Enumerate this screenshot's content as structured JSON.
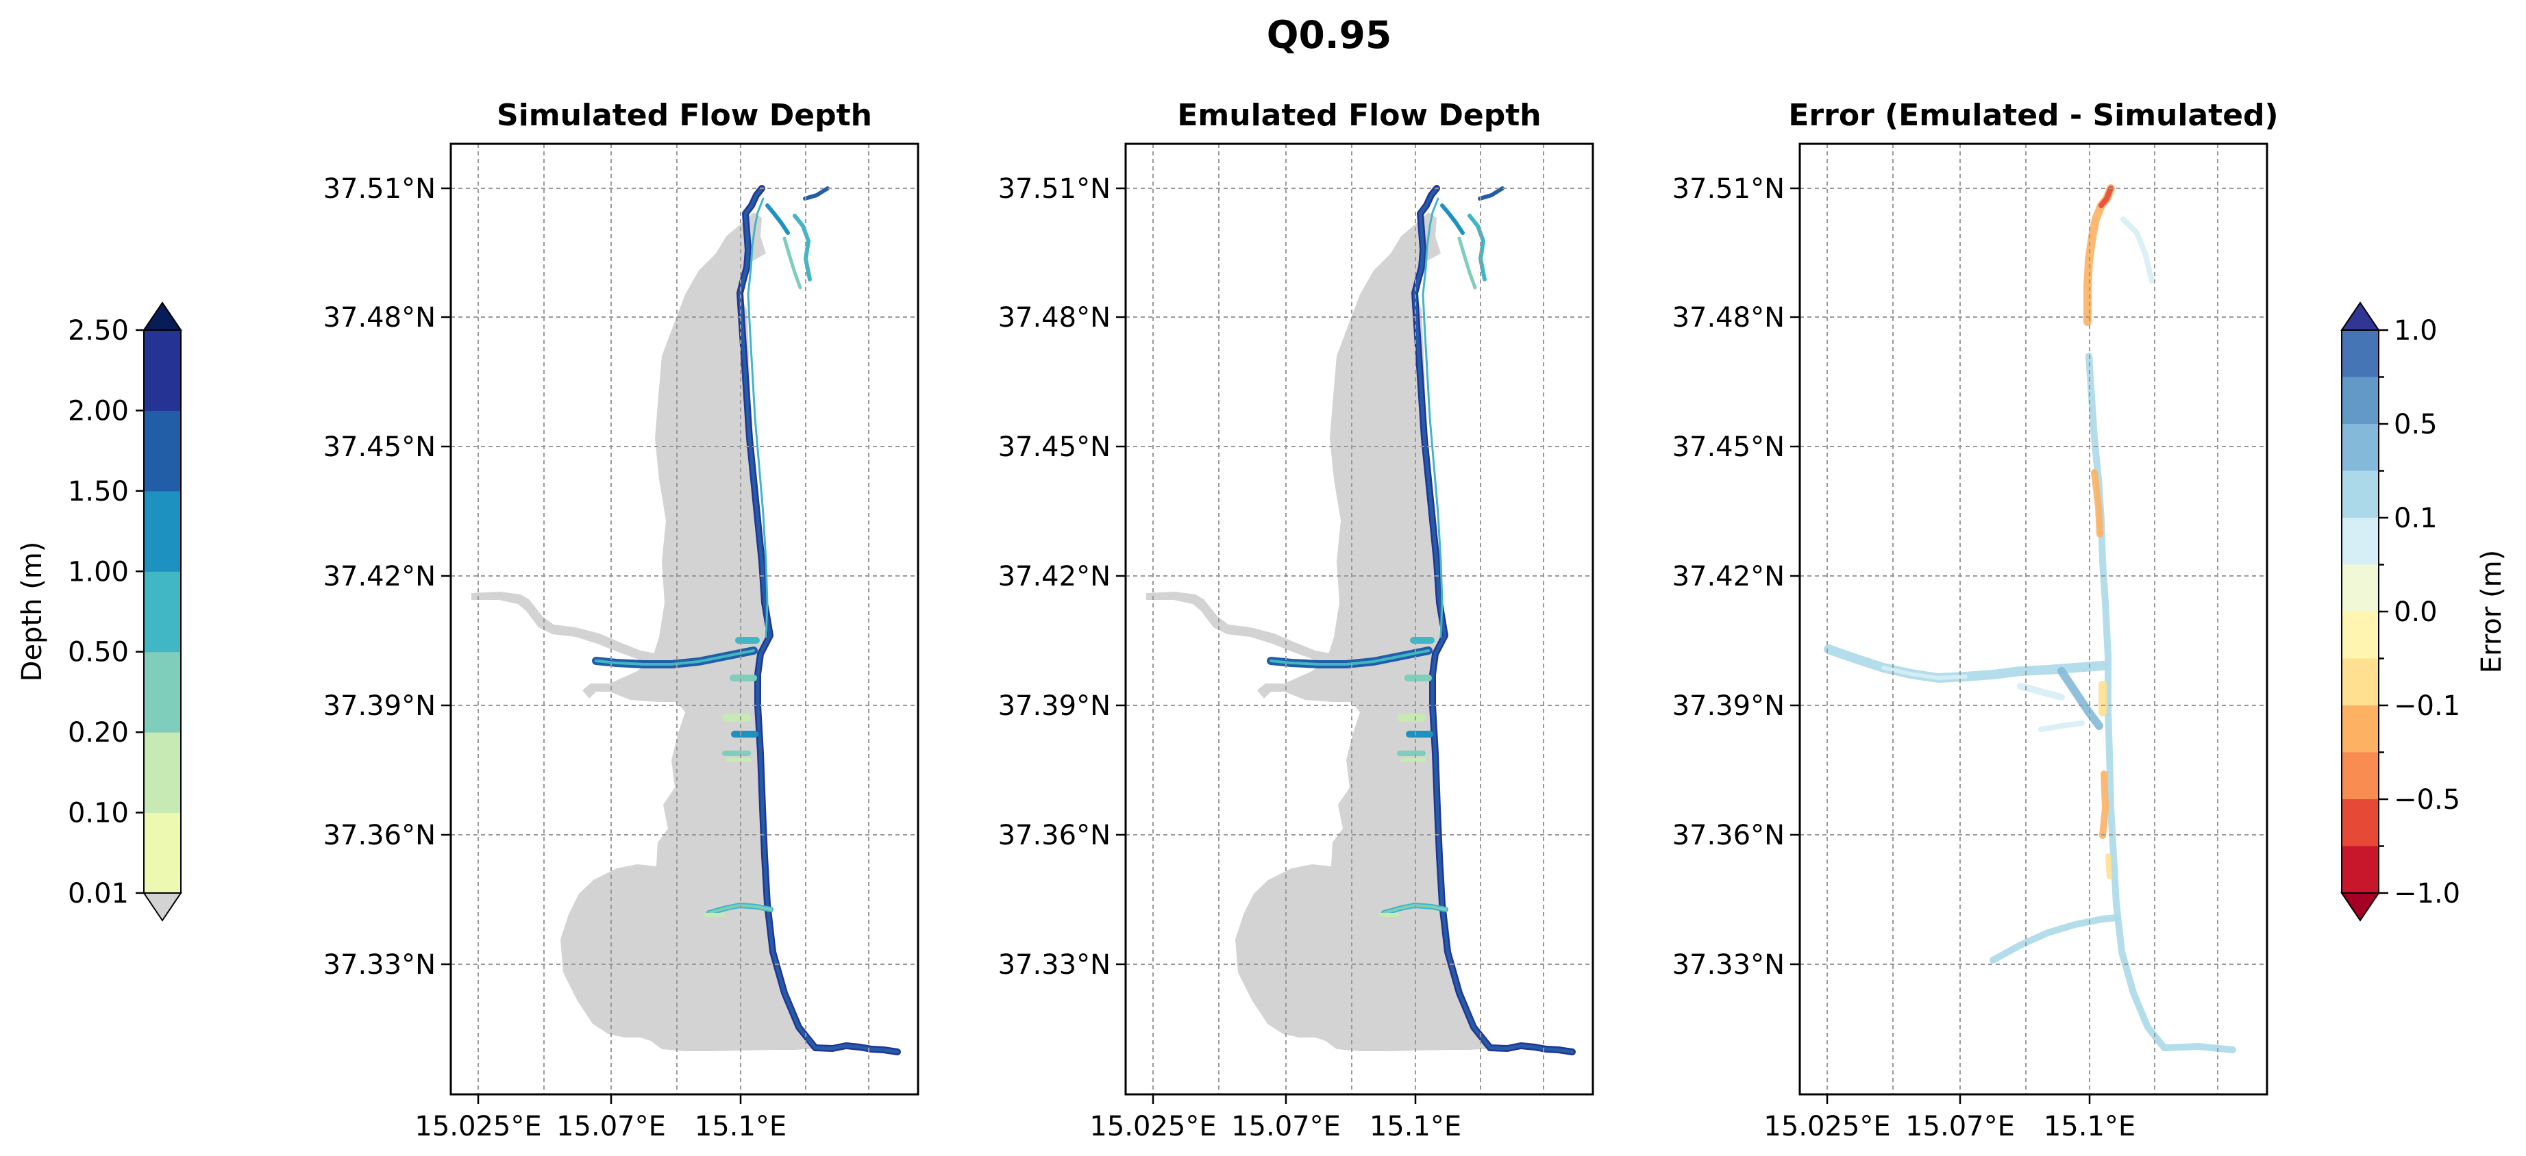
{
  "figure_title": "Q0.95",
  "colorbar_left": {
    "label": "Depth (m)",
    "levels": [
      "0.01",
      "0.10",
      "0.20",
      "0.50",
      "1.00",
      "1.50",
      "2.00",
      "2.50"
    ],
    "colors": [
      "#edf8b1",
      "#c7e9b4",
      "#7fcdbb",
      "#41b6c4",
      "#1d91c0",
      "#225ea8",
      "#253494"
    ],
    "over_color": "#081d58",
    "under_color": "#d3d3d3"
  },
  "colorbar_right": {
    "label": "Error (m)",
    "tick_labels": [
      "1.0",
      "0.5",
      "0.1",
      "0.0",
      "−0.1",
      "−0.5",
      "−1.0"
    ],
    "colors": [
      "#4575b4",
      "#6399c7",
      "#85b9d9",
      "#abd9e9",
      "#d6eef5",
      "#f1f8d6",
      "#fff5b0",
      "#fee090",
      "#fdb163",
      "#f88c51",
      "#e64a36",
      "#c8172b"
    ],
    "over_color": "#313695",
    "under_color": "#a50026"
  },
  "chart_data": [
    {
      "type": "map",
      "title": "Simulated Flow Depth",
      "xticks": [
        "15.025°E",
        "15.07°E",
        "15.1°E"
      ],
      "yticks": [
        "37.51°N",
        "37.48°N",
        "37.45°N",
        "37.42°N",
        "37.39°N",
        "37.36°N",
        "37.33°N"
      ],
      "grid": true,
      "variable": "flow depth (m)",
      "land_color": "#d3d3d3"
    },
    {
      "type": "map",
      "title": "Emulated Flow Depth",
      "xticks": [
        "15.025°E",
        "15.07°E",
        "15.1°E"
      ],
      "yticks": [
        "37.51°N",
        "37.48°N",
        "37.45°N",
        "37.42°N",
        "37.39°N",
        "37.36°N",
        "37.33°N"
      ],
      "grid": true,
      "variable": "flow depth (m)",
      "land_color": "#d3d3d3"
    },
    {
      "type": "map",
      "title": "Error (Emulated - Simulated)",
      "xticks": [
        "15.025°E",
        "15.07°E",
        "15.1°E"
      ],
      "yticks": [
        "37.51°N",
        "37.48°N",
        "37.45°N",
        "37.42°N",
        "37.39°N",
        "37.36°N",
        "37.33°N"
      ],
      "grid": true,
      "variable": "error (m)"
    }
  ]
}
